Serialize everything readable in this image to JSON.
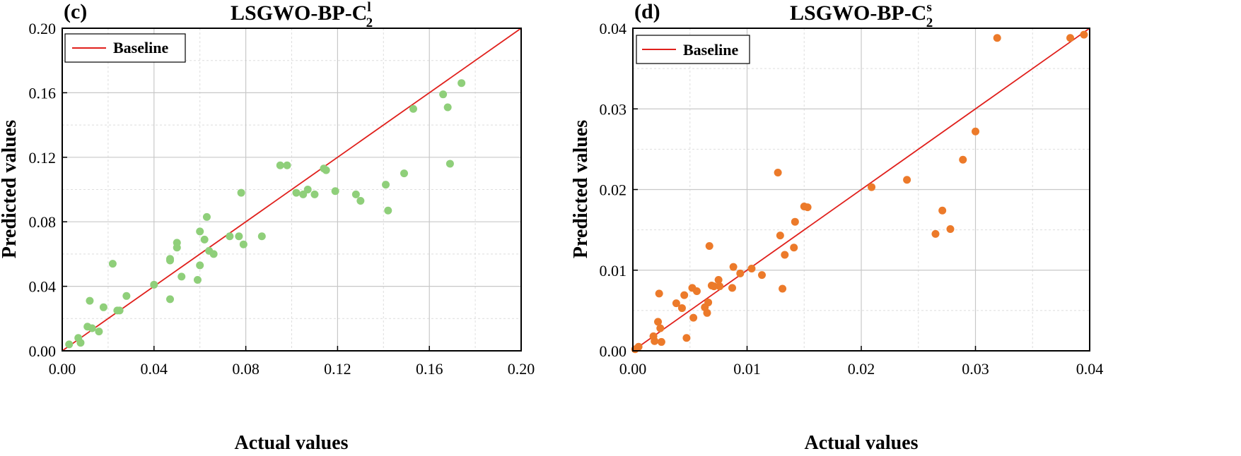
{
  "chart_data": [
    {
      "type": "scatter",
      "panel_label": "(c)",
      "title": "LSGWO-BP-C",
      "title_sub": "2",
      "title_sup": "l",
      "xlabel": "Actual values",
      "ylabel": "Predicted values",
      "xlim": [
        0,
        0.2
      ],
      "ylim": [
        0,
        0.2
      ],
      "xticks": [
        "0.00",
        "0.04",
        "0.08",
        "0.12",
        "0.16",
        "0.20"
      ],
      "yticks": [
        "0.00",
        "0.04",
        "0.08",
        "0.12",
        "0.16",
        "0.20"
      ],
      "grid": true,
      "legend": {
        "entries": [
          "Baseline"
        ],
        "position": "top-left"
      },
      "baseline": {
        "name": "Baseline",
        "color": "#e0201c",
        "from": [
          0,
          0
        ],
        "to": [
          0.2,
          0.2
        ]
      },
      "marker_color": "#8fcf7a",
      "points": {
        "x": [
          0.003,
          0.007,
          0.008,
          0.011,
          0.012,
          0.013,
          0.016,
          0.018,
          0.022,
          0.024,
          0.025,
          0.028,
          0.04,
          0.047,
          0.047,
          0.047,
          0.05,
          0.05,
          0.052,
          0.059,
          0.06,
          0.06,
          0.062,
          0.063,
          0.064,
          0.066,
          0.073,
          0.077,
          0.078,
          0.079,
          0.087,
          0.095,
          0.098,
          0.102,
          0.105,
          0.107,
          0.11,
          0.114,
          0.115,
          0.119,
          0.128,
          0.13,
          0.141,
          0.142,
          0.149,
          0.153,
          0.166,
          0.168,
          0.169,
          0.174
        ],
        "y": [
          0.004,
          0.008,
          0.005,
          0.015,
          0.031,
          0.014,
          0.012,
          0.027,
          0.054,
          0.025,
          0.025,
          0.034,
          0.041,
          0.057,
          0.056,
          0.032,
          0.067,
          0.064,
          0.046,
          0.044,
          0.053,
          0.074,
          0.069,
          0.083,
          0.062,
          0.06,
          0.071,
          0.071,
          0.098,
          0.066,
          0.071,
          0.115,
          0.115,
          0.098,
          0.097,
          0.1,
          0.097,
          0.113,
          0.112,
          0.099,
          0.097,
          0.093,
          0.103,
          0.087,
          0.11,
          0.15,
          0.159,
          0.151,
          0.116,
          0.166
        ]
      }
    },
    {
      "type": "scatter",
      "panel_label": "(d)",
      "title": "LSGWO-BP-C",
      "title_sub": "2",
      "title_sup": "s",
      "xlabel": "Actual values",
      "ylabel": "Predicted values",
      "xlim": [
        0,
        0.04
      ],
      "ylim": [
        0,
        0.04
      ],
      "xticks": [
        "0.00",
        "0.01",
        "0.02",
        "0.03",
        "0.04"
      ],
      "yticks": [
        "0.00",
        "0.01",
        "0.02",
        "0.03",
        "0.04"
      ],
      "grid": true,
      "legend": {
        "entries": [
          "Baseline"
        ],
        "position": "top-left"
      },
      "baseline": {
        "name": "Baseline",
        "color": "#e0201c",
        "from": [
          0,
          0
        ],
        "to": [
          0.04,
          0.04
        ]
      },
      "marker_color": "#ec7a2a",
      "points": {
        "x": [
          0.0002,
          0.0005,
          0.0018,
          0.0019,
          0.0022,
          0.0023,
          0.0024,
          0.0025,
          0.0038,
          0.0043,
          0.0045,
          0.0047,
          0.0052,
          0.0053,
          0.0056,
          0.0063,
          0.0065,
          0.0066,
          0.0067,
          0.0069,
          0.0071,
          0.0075,
          0.0076,
          0.0087,
          0.0088,
          0.0094,
          0.0104,
          0.0113,
          0.0127,
          0.0129,
          0.0131,
          0.0133,
          0.0141,
          0.0142,
          0.015,
          0.0153,
          0.0209,
          0.024,
          0.0265,
          0.0271,
          0.0278,
          0.0289,
          0.03,
          0.0319,
          0.0383,
          0.0395
        ],
        "y": [
          0.0002,
          0.0005,
          0.0018,
          0.0012,
          0.0036,
          0.0071,
          0.0028,
          0.0011,
          0.0059,
          0.0053,
          0.0069,
          0.0016,
          0.0078,
          0.0041,
          0.0074,
          0.0054,
          0.0047,
          0.006,
          0.013,
          0.0081,
          0.008,
          0.0088,
          0.008,
          0.0078,
          0.0104,
          0.0096,
          0.0102,
          0.0094,
          0.0221,
          0.0143,
          0.0077,
          0.0119,
          0.0128,
          0.016,
          0.0179,
          0.0178,
          0.0203,
          0.0212,
          0.0145,
          0.0174,
          0.0151,
          0.0237,
          0.0272,
          0.0388,
          0.0388,
          0.0392
        ]
      }
    }
  ]
}
